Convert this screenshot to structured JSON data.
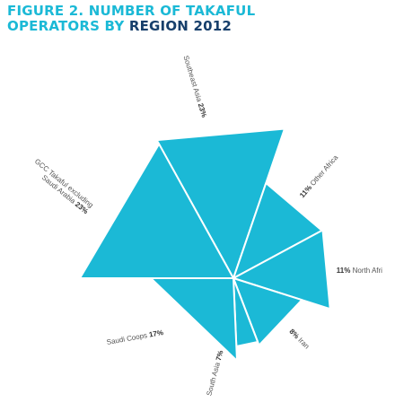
{
  "title": {
    "line1_accent": "FIGURE 2. NUMBER OF TAKAFUL",
    "line2_accent": "OPERATORS BY ",
    "line2_dark": "REGION 2012"
  },
  "colors": {
    "accent": "#1bb9d6",
    "title_dark": "#173f6b",
    "separator": "#ffffff",
    "label_text": "#555555"
  },
  "chart_data": {
    "type": "pie",
    "variant": "polar-area",
    "title": "FIGURE 2. NUMBER OF TAKAFUL OPERATORS BY REGION 2012",
    "unit": "%",
    "slices": [
      {
        "name": "Southeast Asia",
        "value": 23,
        "label_lines": [
          "Southeast Asia "
        ],
        "pct_text": "23%"
      },
      {
        "name": "Other Africa",
        "value": 11,
        "label_lines": [
          " Other Africa"
        ],
        "pct_text": "11%",
        "pct_first": true
      },
      {
        "name": "North Africa",
        "value": 11,
        "label_lines": [
          " North Afri"
        ],
        "pct_text": "11%",
        "pct_first": true
      },
      {
        "name": "Iran",
        "value": 8,
        "label_lines": [
          " Iran"
        ],
        "pct_text": "8%",
        "pct_first": true
      },
      {
        "name": "South Asia",
        "value": 7,
        "label_lines": [
          "South Asia "
        ],
        "pct_text": "7%"
      },
      {
        "name": "Saudi Coops",
        "value": 17,
        "label_lines": [
          "Saudi Coops "
        ],
        "pct_text": "17%"
      },
      {
        "name": "GCC Takaful excluding Saudi Arabia",
        "value": 23,
        "label_lines": [
          "GCC Takaful excluding",
          "Saudi Arabia "
        ],
        "pct_text": "23%"
      }
    ]
  }
}
